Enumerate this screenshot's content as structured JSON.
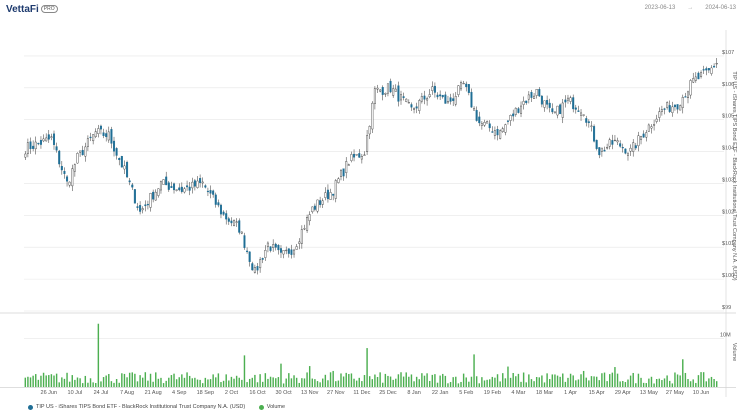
{
  "header": {
    "logo_text": "VettaFi",
    "logo_badge": "PRO",
    "date_start": "2023-06-13",
    "date_sep": "→",
    "date_end": "2024-06-13"
  },
  "legend": {
    "price_label": "TIP US - iShares TIPS Bond ETF - BlackRock Institutional Trust Company N.A. (USD)",
    "volume_label": "Volume"
  },
  "colors": {
    "up": "#ffffff",
    "down": "#1f6e95",
    "volume": "#4caf50",
    "grid": "#e6e6e6"
  },
  "chart_data": [
    {
      "type": "candlestick",
      "title": "",
      "ylabel": "TIP US - iShares TIPS Bond ETF - BlackRock Institutional Trust Company N.A. (USD)",
      "ylim": [
        99.0,
        107.5
      ],
      "y_ticks": [
        "$99",
        "$100",
        "$101",
        "$102",
        "$103",
        "$104",
        "$105",
        "$106",
        "$107"
      ],
      "y_tick_values": [
        99,
        100,
        101,
        102,
        103,
        104,
        105,
        106,
        107
      ],
      "x_tick_labels": [
        "26 Jun",
        "10 Jul",
        "24 Jul",
        "7 Aug",
        "21 Aug",
        "4 Sep",
        "18 Sep",
        "2 Oct",
        "16 Oct",
        "30 Oct",
        "13 Nov",
        "27 Nov",
        "11 Dec",
        "25 Dec",
        "8 Jan",
        "22 Jan",
        "5 Feb",
        "19 Feb",
        "4 Mar",
        "18 Mar",
        "1 Apr",
        "15 Apr",
        "29 Apr",
        "13 May",
        "27 May",
        "10 Jun"
      ],
      "x_tick_index": [
        9,
        19,
        29,
        39,
        49,
        59,
        69,
        79,
        89,
        99,
        109,
        119,
        129,
        139,
        149,
        159,
        169,
        179,
        189,
        199,
        209,
        219,
        229,
        239,
        249,
        259
      ],
      "anchors": [
        {
          "i": 0,
          "close": 104.1
        },
        {
          "i": 10,
          "close": 104.4
        },
        {
          "i": 16,
          "close": 103.0
        },
        {
          "i": 20,
          "close": 103.8
        },
        {
          "i": 27,
          "close": 104.6
        },
        {
          "i": 32,
          "close": 104.5
        },
        {
          "i": 38,
          "close": 103.4
        },
        {
          "i": 44,
          "close": 102.1
        },
        {
          "i": 52,
          "close": 103.0
        },
        {
          "i": 60,
          "close": 102.8
        },
        {
          "i": 68,
          "close": 103.0
        },
        {
          "i": 76,
          "close": 102.0
        },
        {
          "i": 82,
          "close": 101.6
        },
        {
          "i": 88,
          "close": 100.2
        },
        {
          "i": 93,
          "close": 101.1
        },
        {
          "i": 98,
          "close": 100.7
        },
        {
          "i": 103,
          "close": 101.0
        },
        {
          "i": 110,
          "close": 102.2
        },
        {
          "i": 118,
          "close": 102.8
        },
        {
          "i": 124,
          "close": 103.7
        },
        {
          "i": 130,
          "close": 104.0
        },
        {
          "i": 134,
          "close": 105.9
        },
        {
          "i": 140,
          "close": 106.0
        },
        {
          "i": 148,
          "close": 105.3
        },
        {
          "i": 156,
          "close": 105.9
        },
        {
          "i": 162,
          "close": 105.5
        },
        {
          "i": 168,
          "close": 106.1
        },
        {
          "i": 174,
          "close": 104.9
        },
        {
          "i": 182,
          "close": 104.6
        },
        {
          "i": 190,
          "close": 105.5
        },
        {
          "i": 196,
          "close": 105.9
        },
        {
          "i": 202,
          "close": 105.1
        },
        {
          "i": 208,
          "close": 105.6
        },
        {
          "i": 214,
          "close": 105.3
        },
        {
          "i": 220,
          "close": 104.0
        },
        {
          "i": 226,
          "close": 104.3
        },
        {
          "i": 232,
          "close": 104.0
        },
        {
          "i": 238,
          "close": 104.7
        },
        {
          "i": 244,
          "close": 105.3
        },
        {
          "i": 250,
          "close": 105.5
        },
        {
          "i": 256,
          "close": 106.2
        },
        {
          "i": 262,
          "close": 106.5
        },
        {
          "i": 265,
          "close": 106.8
        }
      ],
      "n_bars": 266
    },
    {
      "type": "bar",
      "title": "",
      "ylabel": "Volume",
      "ylim": [
        0,
        15000000
      ],
      "y_ticks": [
        "10M"
      ],
      "y_tick_values": [
        10000000
      ],
      "typical_volume": 1800000,
      "volume_spikes": [
        {
          "i": 28,
          "value": 13000000
        },
        {
          "i": 84,
          "value": 6500000
        },
        {
          "i": 98,
          "value": 4800000
        },
        {
          "i": 109,
          "value": 4300000
        },
        {
          "i": 118,
          "value": 3300000
        },
        {
          "i": 131,
          "value": 8000000
        },
        {
          "i": 146,
          "value": 3000000
        },
        {
          "i": 172,
          "value": 6700000
        },
        {
          "i": 185,
          "value": 4200000
        },
        {
          "i": 214,
          "value": 3300000
        },
        {
          "i": 226,
          "value": 4100000
        },
        {
          "i": 252,
          "value": 5700000
        }
      ]
    }
  ]
}
